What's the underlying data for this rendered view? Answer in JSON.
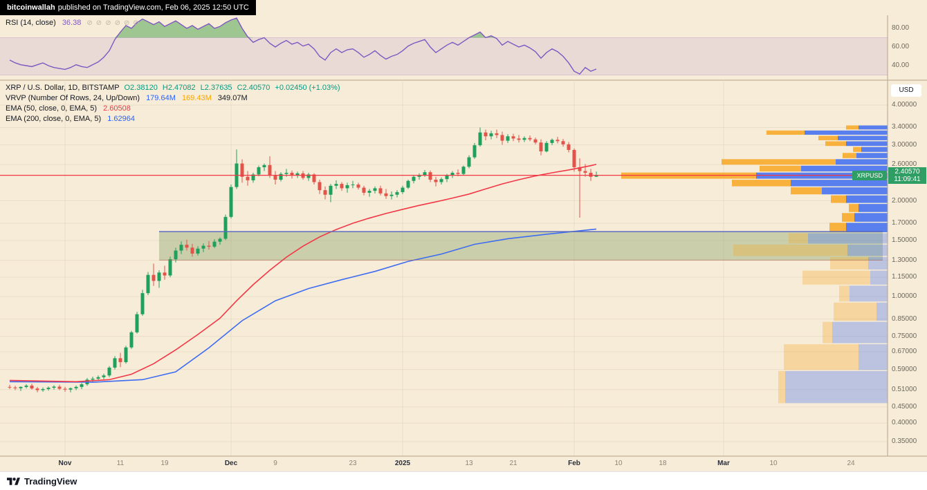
{
  "banner": {
    "author": "bitcoinwallah",
    "suffix": "published on TradingView.com, Feb 06, 2025 12:50 UTC"
  },
  "rsi_panel": {
    "title": "RSI (14, close)",
    "value": "36.38",
    "toolbar_icons": [
      "⊘",
      "⊘",
      "⊘",
      "⊘",
      "⊘",
      "⊘"
    ],
    "axis_labels": [
      {
        "label": "80.00",
        "y": 41
      },
      {
        "label": "60.00",
        "y": 68
      },
      {
        "label": "40.00",
        "y": 95
      }
    ]
  },
  "main_panel": {
    "symbol_line": {
      "title": "XRP / U.S. Dollar, 1D, BITSTAMP",
      "o": "O2.38120",
      "h": "H2.47082",
      "l": "L2.37635",
      "c": "C2.40570",
      "change": "+0.02450 (+1.03%)"
    },
    "vrvp_line": {
      "title": "VRVP (Number Of Rows, 24, Up/Down)",
      "up": "179.64M",
      "down": "169.43M",
      "total": "349.07M"
    },
    "ema50_line": {
      "title": "EMA (50, close, 0, EMA, 5)",
      "value": "2.60508"
    },
    "ema200_line": {
      "title": "EMA (200, close, 0, EMA, 5)",
      "value": "1.62964"
    },
    "price_label": {
      "symbol": "XRPUSD",
      "value": "2.40570",
      "countdown": "11:09:41"
    }
  },
  "axis": {
    "currency": "USD",
    "price_labels": [
      "4.00000",
      "3.40000",
      "3.00000",
      "2.60000",
      "2.00000",
      "1.70000",
      "1.50000",
      "1.30000",
      "1.15000",
      "1.00000",
      "0.85000",
      "0.75000",
      "0.67000",
      "0.59000",
      "0.51000",
      "0.45000",
      "0.40000",
      "0.35000"
    ]
  },
  "time_axis": [
    {
      "label": "Nov",
      "i": 10,
      "major": true
    },
    {
      "label": "11",
      "i": 20,
      "major": false
    },
    {
      "label": "19",
      "i": 28,
      "major": false
    },
    {
      "label": "Dec",
      "i": 40,
      "major": true
    },
    {
      "label": "9",
      "i": 48,
      "major": false
    },
    {
      "label": "23",
      "i": 62,
      "major": false
    },
    {
      "label": "2025",
      "i": 71,
      "major": true
    },
    {
      "label": "13",
      "i": 83,
      "major": false
    },
    {
      "label": "21",
      "i": 91,
      "major": false
    },
    {
      "label": "Feb",
      "i": 102,
      "major": true
    },
    {
      "label": "10",
      "i": 110,
      "major": false
    },
    {
      "label": "18",
      "i": 118,
      "major": false
    },
    {
      "label": "Mar",
      "i": 129,
      "major": true
    },
    {
      "label": "10",
      "i": 138,
      "major": false
    },
    {
      "label": "24",
      "i": 152,
      "major": false
    }
  ],
  "footer": {
    "brand": "TradingView"
  },
  "colors": {
    "background": "#f7ecd8",
    "candle_up": "#1fa05c",
    "candle_down": "#e2544a",
    "ema50": "#f23645",
    "ema200": "#3d6cf2",
    "rsi_line": "#7e57c2",
    "price_line": "#f23645",
    "price_badge": "#2f9e64",
    "profile_up": "#3d6cf2",
    "profile_down": "#f7a825",
    "zone_fill": "rgba(128,159,96,0.38)"
  },
  "chart_data": {
    "type": "candlestick",
    "title": "XRP / U.S. Dollar, 1D, BITSTAMP",
    "ylabel": "USD",
    "price_scale": "log",
    "current_price": 2.4057,
    "grid_months_i": [
      10,
      40,
      71,
      102,
      129
    ],
    "candles": [
      [
        0.52,
        0.528,
        0.512,
        0.518
      ],
      [
        0.518,
        0.524,
        0.508,
        0.515
      ],
      [
        0.515,
        0.522,
        0.505,
        0.52
      ],
      [
        0.52,
        0.53,
        0.514,
        0.525
      ],
      [
        0.525,
        0.532,
        0.51,
        0.514
      ],
      [
        0.514,
        0.52,
        0.5,
        0.508
      ],
      [
        0.508,
        0.518,
        0.502,
        0.512
      ],
      [
        0.512,
        0.522,
        0.506,
        0.517
      ],
      [
        0.517,
        0.526,
        0.51,
        0.521
      ],
      [
        0.521,
        0.528,
        0.508,
        0.513
      ],
      [
        0.513,
        0.52,
        0.502,
        0.51
      ],
      [
        0.51,
        0.518,
        0.5,
        0.515
      ],
      [
        0.515,
        0.525,
        0.508,
        0.52
      ],
      [
        0.52,
        0.535,
        0.512,
        0.53
      ],
      [
        0.53,
        0.555,
        0.524,
        0.548
      ],
      [
        0.548,
        0.56,
        0.538,
        0.552
      ],
      [
        0.552,
        0.565,
        0.544,
        0.558
      ],
      [
        0.558,
        0.572,
        0.55,
        0.565
      ],
      [
        0.565,
        0.605,
        0.558,
        0.598
      ],
      [
        0.598,
        0.65,
        0.59,
        0.64
      ],
      [
        0.64,
        0.665,
        0.6,
        0.622
      ],
      [
        0.622,
        0.7,
        0.615,
        0.692
      ],
      [
        0.692,
        0.78,
        0.685,
        0.772
      ],
      [
        0.772,
        0.895,
        0.765,
        0.88
      ],
      [
        0.88,
        1.05,
        0.87,
        1.025
      ],
      [
        1.025,
        1.195,
        1.01,
        1.17
      ],
      [
        1.17,
        1.27,
        1.08,
        1.12
      ],
      [
        1.12,
        1.21,
        1.065,
        1.19
      ],
      [
        1.19,
        1.25,
        1.13,
        1.165
      ],
      [
        1.165,
        1.335,
        1.15,
        1.31
      ],
      [
        1.31,
        1.425,
        1.28,
        1.395
      ],
      [
        1.395,
        1.49,
        1.36,
        1.455
      ],
      [
        1.455,
        1.51,
        1.395,
        1.425
      ],
      [
        1.425,
        1.465,
        1.335,
        1.365
      ],
      [
        1.365,
        1.44,
        1.345,
        1.415
      ],
      [
        1.415,
        1.47,
        1.38,
        1.445
      ],
      [
        1.445,
        1.495,
        1.405,
        1.435
      ],
      [
        1.435,
        1.515,
        1.42,
        1.488
      ],
      [
        1.488,
        1.535,
        1.455,
        1.52
      ],
      [
        1.52,
        1.81,
        1.505,
        1.78
      ],
      [
        1.78,
        2.25,
        1.76,
        2.21
      ],
      [
        2.21,
        2.9,
        2.18,
        2.62
      ],
      [
        2.62,
        2.7,
        2.28,
        2.38
      ],
      [
        2.38,
        2.48,
        2.23,
        2.32
      ],
      [
        2.32,
        2.45,
        2.28,
        2.42
      ],
      [
        2.42,
        2.58,
        2.39,
        2.55
      ],
      [
        2.55,
        2.62,
        2.48,
        2.59
      ],
      [
        2.59,
        2.76,
        2.36,
        2.4
      ],
      [
        2.4,
        2.48,
        2.25,
        2.33
      ],
      [
        2.33,
        2.46,
        2.3,
        2.43
      ],
      [
        2.43,
        2.52,
        2.38,
        2.45
      ],
      [
        2.45,
        2.49,
        2.35,
        2.4
      ],
      [
        2.4,
        2.47,
        2.36,
        2.44
      ],
      [
        2.44,
        2.48,
        2.33,
        2.36
      ],
      [
        2.36,
        2.45,
        2.31,
        2.42
      ],
      [
        2.42,
        2.44,
        2.25,
        2.29
      ],
      [
        2.29,
        2.33,
        2.1,
        2.16
      ],
      [
        2.16,
        2.22,
        2.02,
        2.09
      ],
      [
        2.09,
        2.26,
        1.98,
        2.23
      ],
      [
        2.23,
        2.32,
        2.18,
        2.26
      ],
      [
        2.26,
        2.29,
        2.15,
        2.19
      ],
      [
        2.19,
        2.28,
        2.12,
        2.24
      ],
      [
        2.24,
        2.31,
        2.19,
        2.25
      ],
      [
        2.25,
        2.28,
        2.17,
        2.2
      ],
      [
        2.2,
        2.23,
        2.08,
        2.12
      ],
      [
        2.12,
        2.18,
        2.06,
        2.15
      ],
      [
        2.15,
        2.22,
        2.11,
        2.19
      ],
      [
        2.19,
        2.23,
        2.08,
        2.11
      ],
      [
        2.11,
        2.18,
        2.03,
        2.07
      ],
      [
        2.07,
        2.14,
        2.02,
        2.09
      ],
      [
        2.09,
        2.16,
        2.05,
        2.13
      ],
      [
        2.13,
        2.23,
        2.1,
        2.2
      ],
      [
        2.2,
        2.33,
        2.18,
        2.31
      ],
      [
        2.31,
        2.4,
        2.27,
        2.38
      ],
      [
        2.38,
        2.44,
        2.33,
        2.41
      ],
      [
        2.41,
        2.5,
        2.38,
        2.46
      ],
      [
        2.46,
        2.49,
        2.29,
        2.33
      ],
      [
        2.33,
        2.38,
        2.22,
        2.29
      ],
      [
        2.29,
        2.37,
        2.25,
        2.34
      ],
      [
        2.34,
        2.43,
        2.29,
        2.4
      ],
      [
        2.4,
        2.48,
        2.36,
        2.45
      ],
      [
        2.45,
        2.51,
        2.39,
        2.43
      ],
      [
        2.43,
        2.58,
        2.4,
        2.56
      ],
      [
        2.56,
        2.78,
        2.53,
        2.74
      ],
      [
        2.74,
        3.04,
        2.71,
        2.99
      ],
      [
        2.99,
        3.4,
        2.96,
        3.28
      ],
      [
        3.28,
        3.35,
        3.1,
        3.19
      ],
      [
        3.19,
        3.32,
        3.12,
        3.26
      ],
      [
        3.26,
        3.35,
        3.15,
        3.22
      ],
      [
        3.22,
        3.3,
        3.0,
        3.09
      ],
      [
        3.09,
        3.24,
        3.04,
        3.19
      ],
      [
        3.19,
        3.25,
        3.08,
        3.14
      ],
      [
        3.14,
        3.22,
        3.05,
        3.11
      ],
      [
        3.11,
        3.19,
        3.06,
        3.15
      ],
      [
        3.15,
        3.21,
        3.08,
        3.12
      ],
      [
        3.12,
        3.16,
        3.01,
        3.05
      ],
      [
        3.05,
        3.12,
        2.78,
        2.86
      ],
      [
        2.86,
        3.08,
        2.84,
        3.04
      ],
      [
        3.04,
        3.14,
        2.99,
        3.11
      ],
      [
        3.11,
        3.18,
        3.03,
        3.08
      ],
      [
        3.08,
        3.13,
        2.96,
        3.01
      ],
      [
        3.01,
        3.06,
        2.84,
        2.89
      ],
      [
        2.89,
        2.92,
        2.47,
        2.55
      ],
      [
        2.55,
        2.72,
        1.77,
        2.48
      ],
      [
        2.48,
        2.61,
        2.38,
        2.45
      ],
      [
        2.45,
        2.52,
        2.31,
        2.38
      ],
      [
        2.3812,
        2.47082,
        2.37635,
        2.4057
      ]
    ],
    "ema50": [
      [
        0,
        0.545
      ],
      [
        12,
        0.54
      ],
      [
        18,
        0.548
      ],
      [
        22,
        0.57
      ],
      [
        26,
        0.615
      ],
      [
        30,
        0.68
      ],
      [
        34,
        0.76
      ],
      [
        38,
        0.855
      ],
      [
        41,
        0.97
      ],
      [
        44,
        1.09
      ],
      [
        47,
        1.21
      ],
      [
        50,
        1.33
      ],
      [
        53,
        1.44
      ],
      [
        56,
        1.54
      ],
      [
        59,
        1.625
      ],
      [
        62,
        1.7
      ],
      [
        65,
        1.765
      ],
      [
        68,
        1.825
      ],
      [
        71,
        1.88
      ],
      [
        74,
        1.935
      ],
      [
        77,
        1.985
      ],
      [
        80,
        2.04
      ],
      [
        83,
        2.1
      ],
      [
        86,
        2.18
      ],
      [
        89,
        2.26
      ],
      [
        92,
        2.33
      ],
      [
        95,
        2.395
      ],
      [
        98,
        2.45
      ],
      [
        101,
        2.5
      ],
      [
        103,
        2.54
      ],
      [
        105,
        2.58
      ],
      [
        106,
        2.605
      ]
    ],
    "ema200": [
      [
        0,
        0.54
      ],
      [
        15,
        0.538
      ],
      [
        24,
        0.548
      ],
      [
        30,
        0.58
      ],
      [
        36,
        0.69
      ],
      [
        42,
        0.84
      ],
      [
        48,
        0.97
      ],
      [
        54,
        1.06
      ],
      [
        60,
        1.13
      ],
      [
        66,
        1.2
      ],
      [
        72,
        1.29
      ],
      [
        78,
        1.36
      ],
      [
        84,
        1.46
      ],
      [
        90,
        1.52
      ],
      [
        97,
        1.57
      ],
      [
        103,
        1.61
      ],
      [
        106,
        1.63
      ]
    ],
    "rsi": [
      46,
      43,
      41,
      40,
      39,
      41,
      43,
      40,
      38,
      37,
      36,
      38,
      41,
      39,
      38,
      41,
      44,
      49,
      56,
      68,
      76,
      83,
      80,
      86,
      90,
      87,
      84,
      87,
      82,
      85,
      88,
      84,
      80,
      83,
      79,
      82,
      85,
      80,
      82,
      86,
      89,
      91,
      80,
      71,
      65,
      68,
      70,
      64,
      60,
      64,
      67,
      63,
      65,
      61,
      63,
      58,
      50,
      46,
      54,
      58,
      54,
      57,
      58,
      54,
      49,
      52,
      56,
      51,
      47,
      50,
      52,
      56,
      61,
      64,
      66,
      68,
      60,
      54,
      58,
      62,
      65,
      62,
      66,
      70,
      73,
      76,
      70,
      72,
      69,
      62,
      66,
      63,
      60,
      62,
      59,
      55,
      48,
      54,
      58,
      55,
      50,
      43,
      34,
      31,
      38,
      34,
      36.38
    ],
    "rsi_overbought": 70,
    "rsi_oversold": 30,
    "support_zone": {
      "from_i": 27,
      "price_low": 1.302,
      "price_high": 1.6
    },
    "volume_profile": {
      "rows": 24,
      "up_total": "179.64M",
      "down_total": "169.43M",
      "total": "349.07M",
      "bars": [
        {
          "lo": 3.335,
          "hi": 3.46,
          "down": 18,
          "up": 42,
          "muted": false
        },
        {
          "lo": 3.21,
          "hi": 3.335,
          "down": 55,
          "up": 120,
          "muted": false
        },
        {
          "lo": 3.085,
          "hi": 3.21,
          "down": 28,
          "up": 72,
          "muted": false
        },
        {
          "lo": 2.96,
          "hi": 3.085,
          "down": 30,
          "up": 60,
          "muted": false
        },
        {
          "lo": 2.835,
          "hi": 2.96,
          "down": 12,
          "up": 38,
          "muted": false
        },
        {
          "lo": 2.71,
          "hi": 2.835,
          "down": 20,
          "up": 45,
          "muted": false
        },
        {
          "lo": 2.585,
          "hi": 2.71,
          "down": 165,
          "up": 75,
          "muted": false
        },
        {
          "lo": 2.46,
          "hi": 2.585,
          "down": 60,
          "up": 125,
          "muted": false
        },
        {
          "lo": 2.335,
          "hi": 2.46,
          "down": 195,
          "up": 190,
          "muted": false
        },
        {
          "lo": 2.21,
          "hi": 2.335,
          "down": 85,
          "up": 140,
          "muted": false
        },
        {
          "lo": 2.085,
          "hi": 2.21,
          "down": 45,
          "up": 95,
          "muted": false
        },
        {
          "lo": 1.96,
          "hi": 2.085,
          "down": 22,
          "up": 60,
          "muted": false
        },
        {
          "lo": 1.835,
          "hi": 1.96,
          "down": 14,
          "up": 42,
          "muted": false
        },
        {
          "lo": 1.71,
          "hi": 1.835,
          "down": 18,
          "up": 48,
          "muted": false
        },
        {
          "lo": 1.585,
          "hi": 1.71,
          "down": 24,
          "up": 60,
          "muted": false
        },
        {
          "lo": 1.46,
          "hi": 1.585,
          "down": 28,
          "up": 115,
          "muted": true
        },
        {
          "lo": 1.335,
          "hi": 1.46,
          "down": 165,
          "up": 58,
          "muted": true
        },
        {
          "lo": 1.21,
          "hi": 1.335,
          "down": 55,
          "up": 28,
          "muted": true
        },
        {
          "lo": 1.085,
          "hi": 1.21,
          "down": 98,
          "up": 25,
          "muted": true
        },
        {
          "lo": 0.96,
          "hi": 1.085,
          "down": 15,
          "up": 55,
          "muted": true
        },
        {
          "lo": 0.835,
          "hi": 0.96,
          "down": 62,
          "up": 16,
          "muted": true
        },
        {
          "lo": 0.71,
          "hi": 0.835,
          "down": 14,
          "up": 80,
          "muted": true
        },
        {
          "lo": 0.585,
          "hi": 0.71,
          "down": 108,
          "up": 42,
          "muted": true
        },
        {
          "lo": 0.46,
          "hi": 0.585,
          "down": 10,
          "up": 148,
          "muted": true
        }
      ]
    }
  }
}
